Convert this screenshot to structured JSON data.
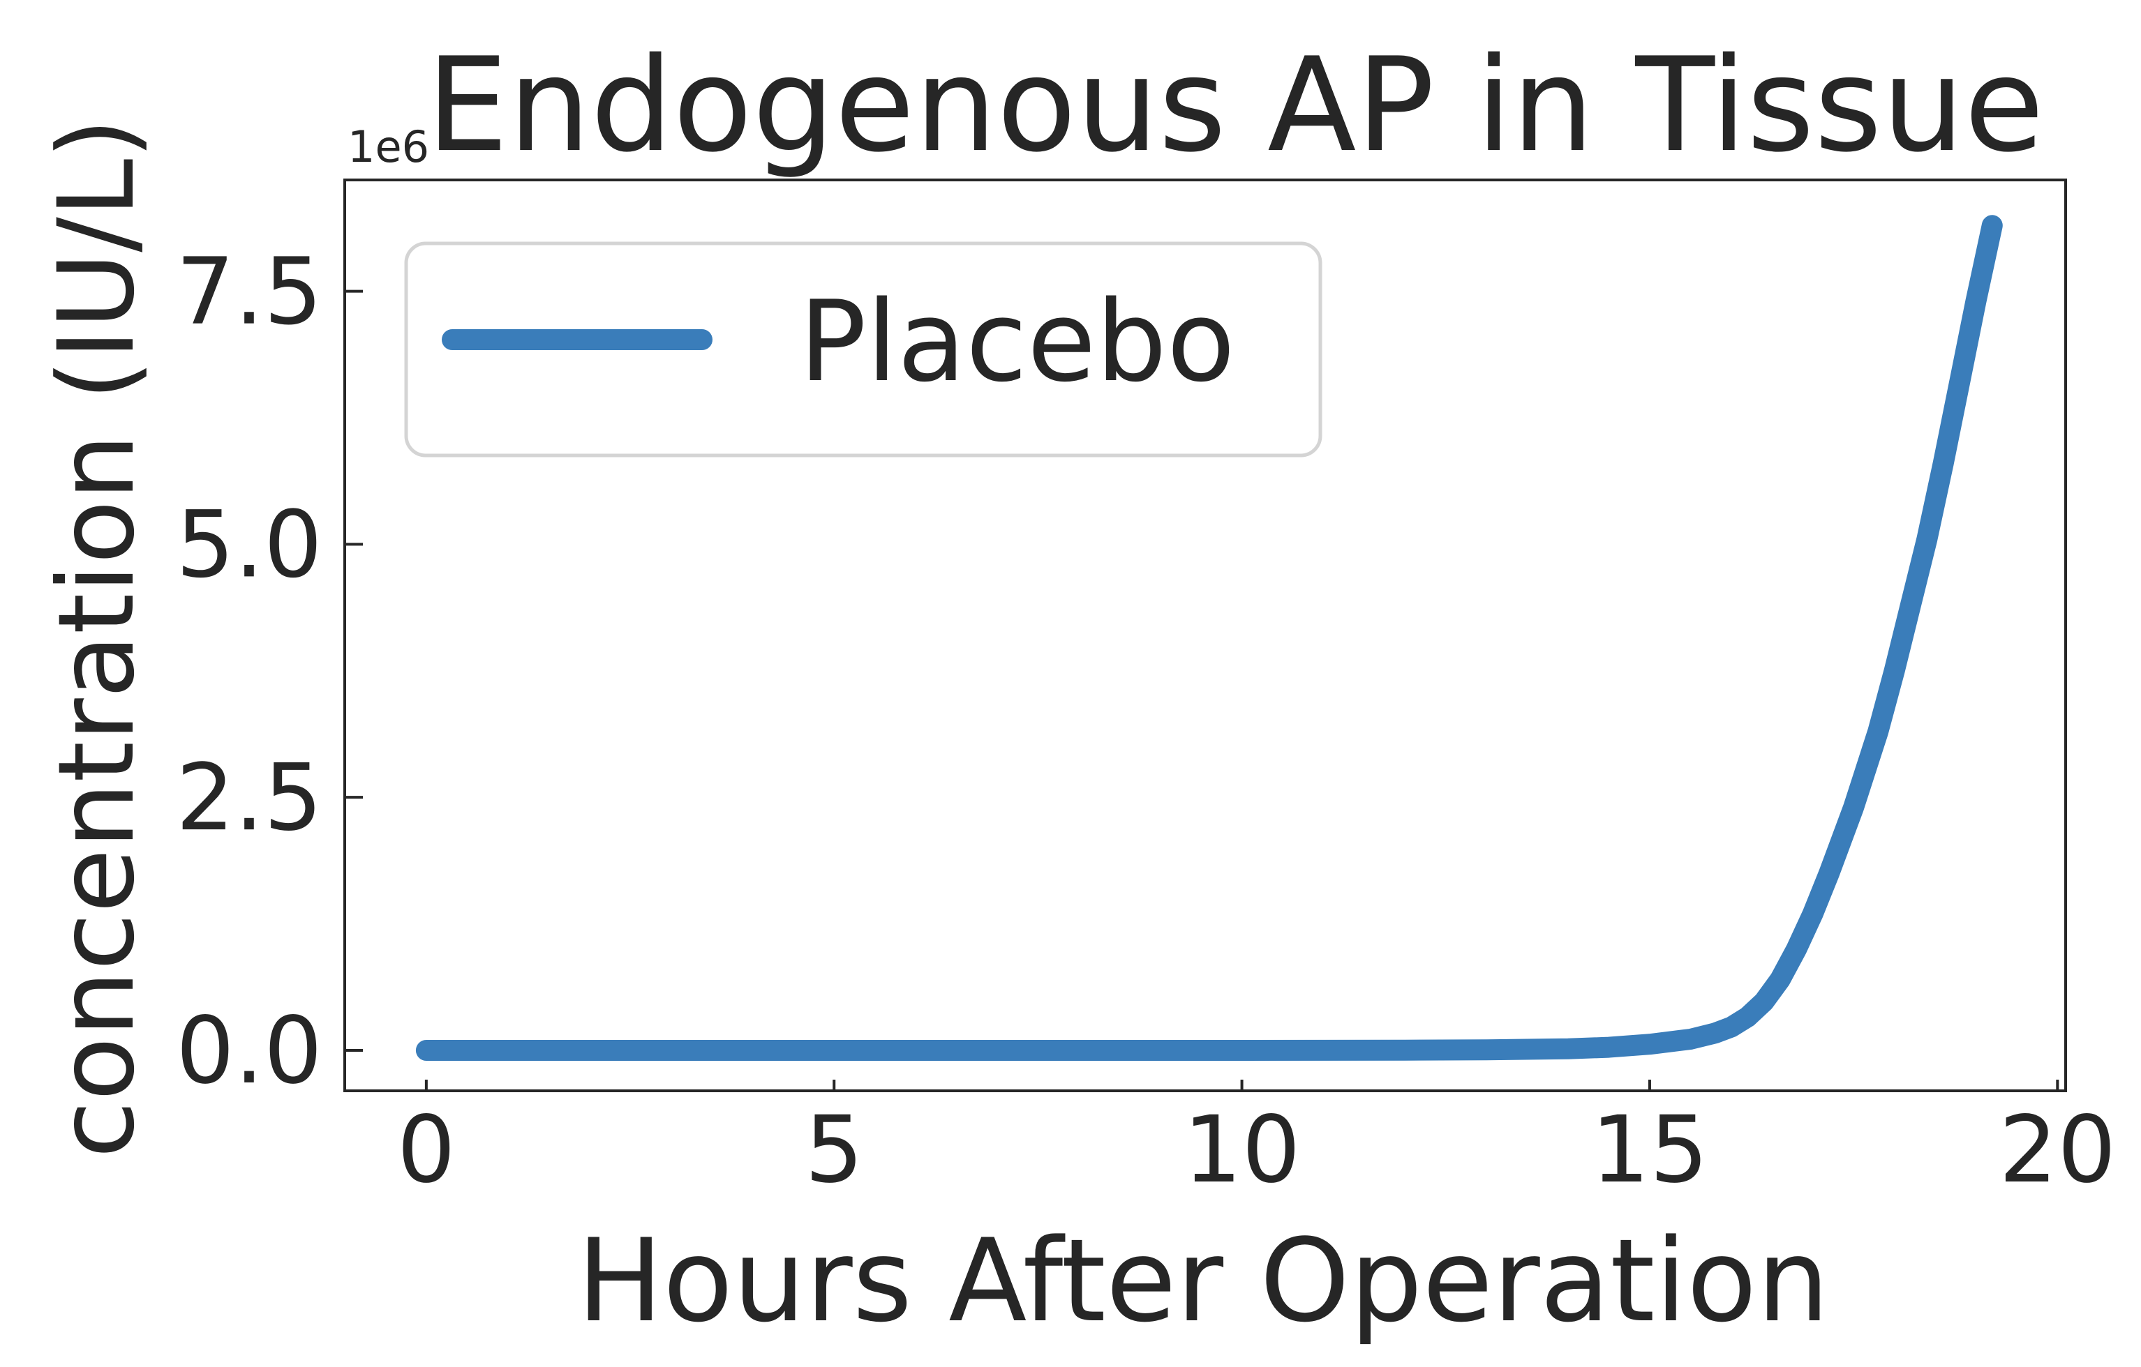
{
  "chart_data": {
    "type": "line",
    "title": "Endogenous AP in Tissue",
    "xlabel": "Hours After Operation",
    "ylabel": "concentration (IU/L)",
    "y_offset_text": "1e6",
    "xlim": [
      -1,
      20.1
    ],
    "ylim": [
      -0.4,
      8.6
    ],
    "y_scale_multiplier": 1000000,
    "x_ticks": [
      0,
      5,
      10,
      15,
      20
    ],
    "x_tick_labels": [
      "0",
      "5",
      "10",
      "15",
      "20"
    ],
    "y_ticks": [
      0.0,
      2.5,
      5.0,
      7.5
    ],
    "y_tick_labels": [
      "0.0",
      "2.5",
      "5.0",
      "7.5"
    ],
    "grid": false,
    "legend_position": "upper-left",
    "series": [
      {
        "name": "Placebo",
        "color": "#3a7dba",
        "x": [
          0,
          2,
          4,
          6,
          8,
          10,
          12,
          13,
          14,
          14.5,
          15,
          15.5,
          15.8,
          16.0,
          16.2,
          16.4,
          16.6,
          16.8,
          17.0,
          17.2,
          17.5,
          17.8,
          18.0,
          18.2,
          18.4,
          18.6,
          18.8,
          19.0,
          19.2
        ],
        "y": [
          0,
          0,
          0,
          0,
          0,
          0,
          0.002,
          0.005,
          0.015,
          0.03,
          0.06,
          0.11,
          0.17,
          0.23,
          0.33,
          0.48,
          0.7,
          1.0,
          1.35,
          1.75,
          2.4,
          3.15,
          3.75,
          4.4,
          5.05,
          5.8,
          6.6,
          7.4,
          8.15
        ]
      }
    ]
  }
}
